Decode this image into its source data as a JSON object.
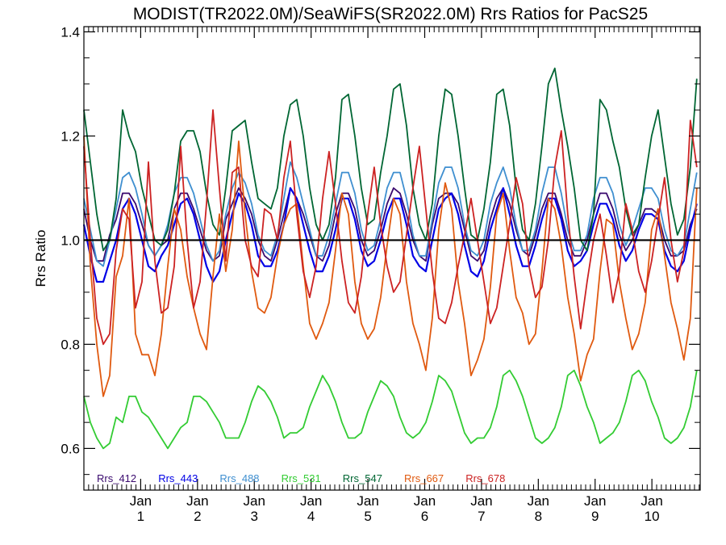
{
  "chart_data": {
    "type": "line",
    "title": "MODIST(TR2022.0M)/SeaWiFS(SR2022.0M)  Rrs Ratios for PacS25",
    "xlabel": "",
    "ylabel": "Rrs Ratio",
    "xlim": [
      0,
      10.85
    ],
    "ylim": [
      0.52,
      1.41
    ],
    "yticks": [
      0.6,
      0.8,
      1.0,
      1.2,
      1.4
    ],
    "ytick_labels": [
      "0.6",
      "0.8",
      "1.0",
      "1.2",
      "1.4"
    ],
    "xticks": [
      {
        "x": 1,
        "month": "Jan",
        "year": "1"
      },
      {
        "x": 2,
        "month": "Jan",
        "year": "2"
      },
      {
        "x": 3,
        "month": "Jan",
        "year": "3"
      },
      {
        "x": 4,
        "month": "Jan",
        "year": "4"
      },
      {
        "x": 5,
        "month": "Jan",
        "year": "5"
      },
      {
        "x": 6,
        "month": "Jan",
        "year": "6"
      },
      {
        "x": 7,
        "month": "Jan",
        "year": "7"
      },
      {
        "x": 8,
        "month": "Jan",
        "year": "8"
      },
      {
        "x": 9,
        "month": "Jan",
        "year": "9"
      },
      {
        "x": 10,
        "month": "Jan",
        "year": "10"
      }
    ],
    "reference_line": 1.0,
    "grid": false,
    "legend_position": "bottom-left inside plot",
    "series": [
      {
        "name": "Rrs_412",
        "color": "#3a0a6e",
        "values": [
          1.06,
          1.0,
          0.96,
          0.96,
          1.01,
          1.04,
          1.09,
          1.09,
          1.07,
          1.03,
          0.99,
          0.97,
          0.99,
          1.0,
          1.06,
          1.09,
          1.09,
          1.06,
          1.02,
          0.98,
          0.96,
          0.97,
          1.04,
          1.07,
          1.1,
          1.08,
          1.05,
          1.0,
          0.97,
          0.96,
          1.0,
          1.05,
          1.1,
          1.08,
          1.05,
          1.01,
          0.97,
          0.96,
          0.99,
          1.05,
          1.09,
          1.09,
          1.06,
          1.0,
          0.97,
          0.98,
          1.02,
          1.07,
          1.1,
          1.09,
          1.05,
          1.0,
          0.97,
          0.96,
          1.03,
          1.08,
          1.09,
          1.09,
          1.07,
          1.02,
          0.97,
          0.96,
          0.98,
          1.04,
          1.08,
          1.1,
          1.07,
          1.02,
          0.98,
          0.97,
          1.01,
          1.06,
          1.09,
          1.09,
          1.05,
          1.0,
          0.97,
          0.97,
          1.0,
          1.05,
          1.09,
          1.09,
          1.06,
          1.01,
          0.98,
          1.0,
          1.03,
          1.06,
          1.06,
          1.05,
          1.0,
          0.97,
          0.97,
          0.98,
          1.03,
          1.06
        ]
      },
      {
        "name": "Rrs_443",
        "color": "#0000e6",
        "values": [
          1.03,
          0.97,
          0.92,
          0.92,
          0.96,
          1.0,
          1.06,
          1.08,
          1.05,
          1.0,
          0.95,
          0.94,
          0.97,
          0.99,
          1.03,
          1.07,
          1.08,
          1.05,
          1.0,
          0.95,
          0.92,
          0.94,
          1.0,
          1.05,
          1.09,
          1.07,
          1.03,
          0.97,
          0.95,
          0.95,
          0.98,
          1.03,
          1.1,
          1.08,
          1.03,
          0.98,
          0.94,
          0.94,
          0.97,
          1.02,
          1.08,
          1.08,
          1.04,
          0.98,
          0.95,
          0.96,
          1.0,
          1.05,
          1.08,
          1.08,
          1.03,
          0.97,
          0.95,
          0.94,
          1.0,
          1.06,
          1.08,
          1.09,
          1.05,
          0.99,
          0.94,
          0.93,
          0.96,
          1.02,
          1.06,
          1.1,
          1.05,
          0.99,
          0.95,
          0.95,
          0.99,
          1.04,
          1.08,
          1.08,
          1.04,
          0.98,
          0.95,
          0.96,
          0.98,
          1.03,
          1.07,
          1.07,
          1.04,
          0.99,
          0.96,
          0.98,
          1.02,
          1.05,
          1.05,
          1.04,
          0.98,
          0.95,
          0.94,
          0.96,
          1.02,
          1.07
        ]
      },
      {
        "name": "Rrs_488",
        "color": "#3f8fd0",
        "values": [
          1.08,
          1.02,
          0.96,
          0.95,
          1.0,
          1.06,
          1.12,
          1.13,
          1.1,
          1.05,
          0.99,
          0.97,
          0.99,
          1.03,
          1.09,
          1.12,
          1.12,
          1.09,
          1.04,
          0.99,
          0.96,
          0.98,
          1.05,
          1.1,
          1.13,
          1.11,
          1.07,
          1.01,
          0.98,
          0.97,
          1.01,
          1.08,
          1.15,
          1.12,
          1.07,
          1.02,
          0.97,
          0.97,
          1.01,
          1.07,
          1.13,
          1.13,
          1.09,
          1.02,
          0.98,
          0.99,
          1.04,
          1.1,
          1.13,
          1.13,
          1.08,
          1.01,
          0.97,
          0.97,
          1.04,
          1.11,
          1.14,
          1.14,
          1.1,
          1.03,
          0.98,
          0.97,
          1.0,
          1.07,
          1.11,
          1.14,
          1.1,
          1.03,
          0.98,
          0.98,
          1.02,
          1.09,
          1.14,
          1.14,
          1.09,
          1.02,
          0.98,
          0.98,
          1.01,
          1.08,
          1.12,
          1.12,
          1.09,
          1.03,
          0.99,
          1.02,
          1.06,
          1.1,
          1.1,
          1.08,
          1.02,
          0.98,
          0.97,
          0.99,
          1.06,
          1.13
        ]
      },
      {
        "name": "Rrs_531",
        "color": "#33cc33",
        "values": [
          0.7,
          0.65,
          0.62,
          0.6,
          0.61,
          0.66,
          0.65,
          0.7,
          0.7,
          0.67,
          0.66,
          0.64,
          0.62,
          0.6,
          0.62,
          0.64,
          0.65,
          0.7,
          0.7,
          0.69,
          0.67,
          0.65,
          0.62,
          0.62,
          0.62,
          0.65,
          0.69,
          0.72,
          0.71,
          0.69,
          0.66,
          0.62,
          0.63,
          0.63,
          0.64,
          0.68,
          0.71,
          0.74,
          0.72,
          0.69,
          0.65,
          0.62,
          0.62,
          0.63,
          0.67,
          0.7,
          0.73,
          0.72,
          0.7,
          0.66,
          0.63,
          0.62,
          0.63,
          0.65,
          0.69,
          0.74,
          0.73,
          0.71,
          0.67,
          0.63,
          0.61,
          0.62,
          0.62,
          0.64,
          0.68,
          0.74,
          0.75,
          0.73,
          0.7,
          0.66,
          0.62,
          0.61,
          0.62,
          0.64,
          0.68,
          0.74,
          0.75,
          0.72,
          0.68,
          0.65,
          0.61,
          0.62,
          0.63,
          0.65,
          0.69,
          0.74,
          0.75,
          0.73,
          0.69,
          0.66,
          0.62,
          0.61,
          0.62,
          0.64,
          0.68,
          0.75
        ]
      },
      {
        "name": "Rrs_547",
        "color": "#006633",
        "values": [
          1.25,
          1.15,
          1.05,
          0.98,
          1.0,
          1.08,
          1.25,
          1.2,
          1.17,
          1.1,
          1.05,
          1.0,
          0.99,
          1.02,
          1.09,
          1.19,
          1.21,
          1.21,
          1.17,
          1.09,
          1.03,
          1.01,
          1.1,
          1.21,
          1.22,
          1.23,
          1.15,
          1.08,
          1.07,
          1.06,
          1.1,
          1.2,
          1.26,
          1.27,
          1.2,
          1.1,
          1.03,
          1.0,
          1.03,
          1.12,
          1.27,
          1.28,
          1.2,
          1.1,
          1.03,
          1.04,
          1.13,
          1.2,
          1.29,
          1.3,
          1.22,
          1.1,
          1.03,
          1.0,
          1.07,
          1.2,
          1.29,
          1.28,
          1.2,
          1.1,
          1.01,
          1.0,
          1.06,
          1.15,
          1.28,
          1.29,
          1.22,
          1.1,
          1.02,
          1.0,
          1.07,
          1.18,
          1.3,
          1.33,
          1.25,
          1.18,
          1.1,
          1.0,
          0.98,
          1.05,
          1.27,
          1.25,
          1.19,
          1.14,
          1.06,
          1.01,
          1.03,
          1.12,
          1.2,
          1.25,
          1.16,
          1.07,
          1.01,
          1.04,
          1.14,
          1.31
        ]
      },
      {
        "name": "Rrs_667",
        "color": "#e05a10",
        "values": [
          1.2,
          0.95,
          0.8,
          0.7,
          0.74,
          0.93,
          0.97,
          1.08,
          0.82,
          0.78,
          0.78,
          0.74,
          0.82,
          0.95,
          1.06,
          1.02,
          0.93,
          0.87,
          0.82,
          0.79,
          0.93,
          1.05,
          0.94,
          1.02,
          1.19,
          1.05,
          0.94,
          0.87,
          0.86,
          0.89,
          0.97,
          1.03,
          1.06,
          1.07,
          0.95,
          0.84,
          0.81,
          0.84,
          0.88,
          0.98,
          1.09,
          1.05,
          0.92,
          0.84,
          0.81,
          0.83,
          0.89,
          0.99,
          1.08,
          1.05,
          0.92,
          0.84,
          0.8,
          0.75,
          0.85,
          1.02,
          1.11,
          1.06,
          0.92,
          0.84,
          0.74,
          0.77,
          0.81,
          0.91,
          1.05,
          1.09,
          0.98,
          0.89,
          0.86,
          0.8,
          0.82,
          0.94,
          1.08,
          1.06,
          0.99,
          0.89,
          0.82,
          0.73,
          0.78,
          0.81,
          0.94,
          1.04,
          1.03,
          0.92,
          0.85,
          0.79,
          0.82,
          0.88,
          1.02,
          1.06,
          0.97,
          0.88,
          0.83,
          0.77,
          0.85,
          1.1
        ]
      },
      {
        "name": "Rrs_678",
        "color": "#cc2222",
        "values": [
          1.18,
          1.0,
          0.85,
          0.8,
          0.82,
          0.98,
          1.06,
          1.04,
          0.87,
          0.92,
          1.15,
          0.96,
          0.86,
          0.87,
          0.95,
          1.18,
          1.0,
          0.87,
          0.92,
          1.07,
          1.25,
          1.1,
          0.96,
          1.13,
          1.14,
          1.0,
          0.95,
          0.93,
          1.06,
          1.05,
          1.0,
          1.12,
          1.19,
          1.05,
          0.94,
          0.89,
          0.95,
          1.08,
          1.17,
          1.07,
          0.96,
          0.88,
          0.86,
          0.93,
          1.05,
          1.14,
          1.03,
          0.95,
          0.9,
          0.92,
          1.01,
          1.1,
          1.18,
          1.06,
          0.94,
          0.85,
          0.84,
          0.88,
          0.95,
          1.01,
          1.08,
          1.0,
          0.92,
          0.84,
          0.87,
          0.95,
          1.03,
          1.12,
          1.07,
          0.95,
          0.89,
          0.91,
          1.0,
          1.14,
          1.21,
          1.05,
          0.93,
          0.83,
          0.92,
          1.0,
          1.05,
          0.97,
          0.88,
          0.94,
          1.07,
          1.02,
          0.94,
          0.9,
          0.96,
          1.04,
          1.12,
          1.0,
          0.92,
          0.98,
          1.23,
          1.14
        ]
      }
    ]
  }
}
